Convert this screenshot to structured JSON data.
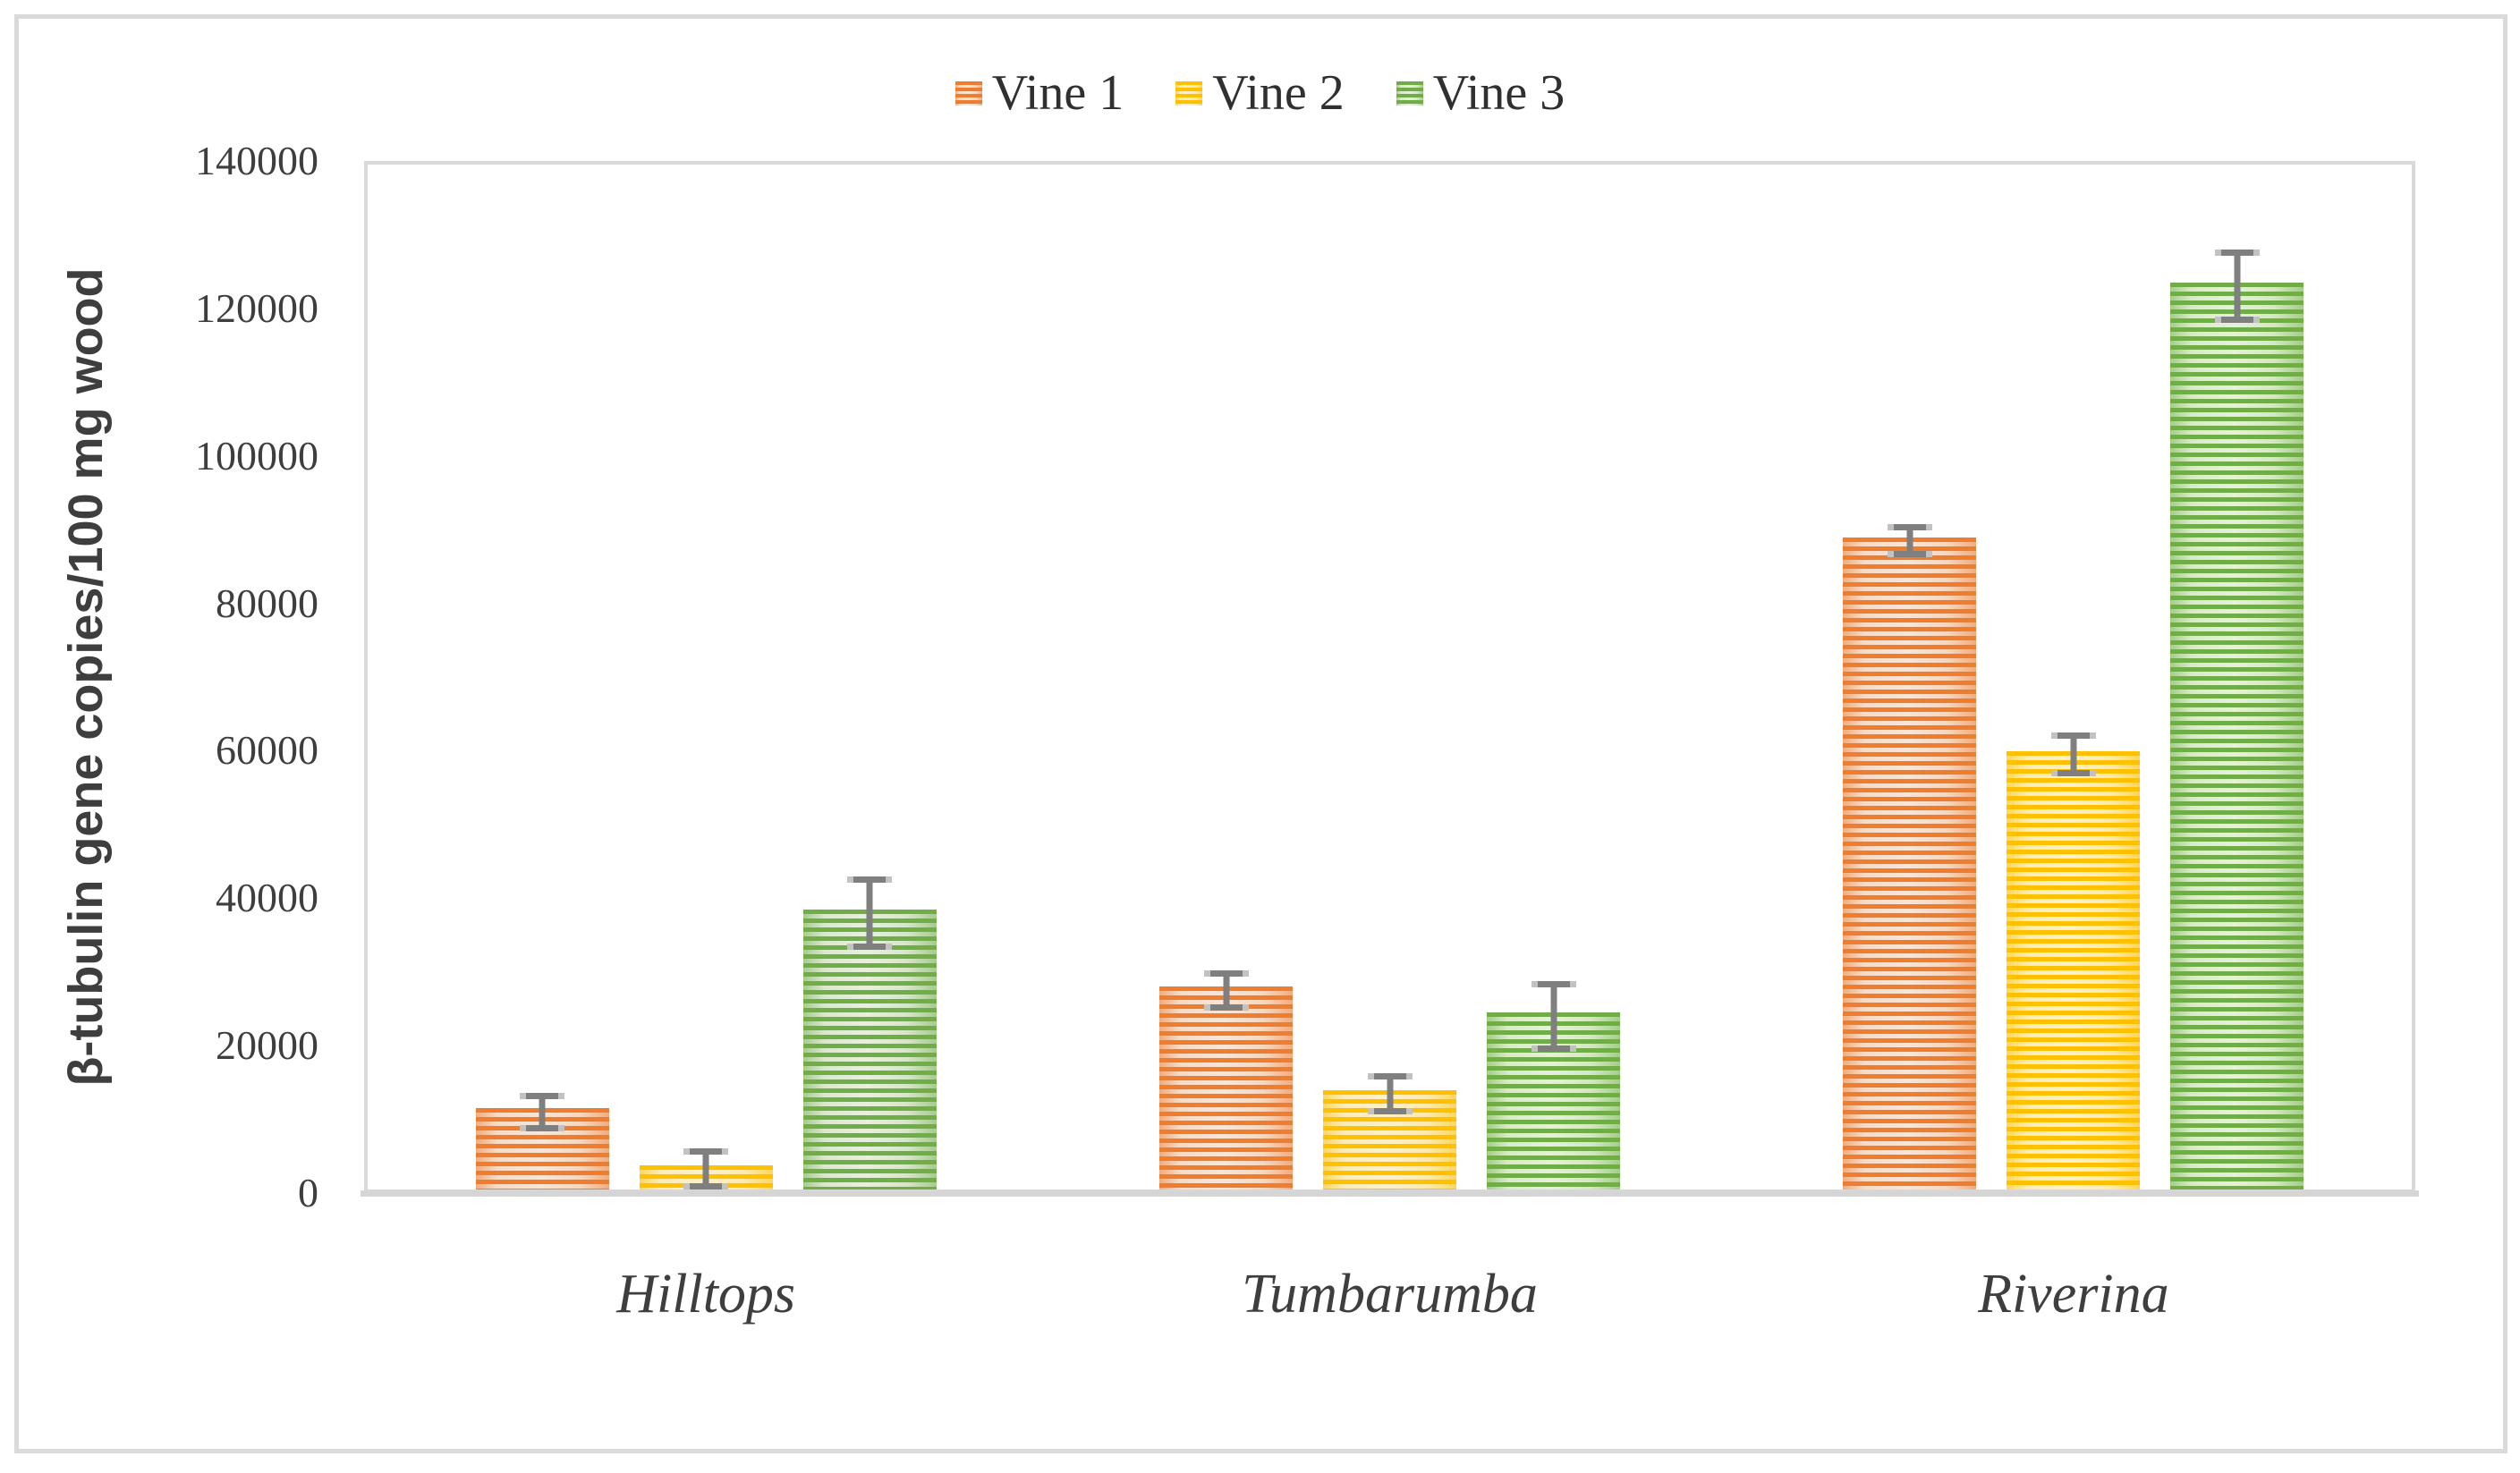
{
  "figure": {
    "background": "#FFFFFF",
    "frame_border_color": "#DADADA"
  },
  "chart_data": {
    "type": "bar",
    "title": "",
    "categories": [
      "Hilltops",
      "Tumbarumba",
      "Riverina"
    ],
    "series": [
      {
        "name": "Vine 1",
        "color": "#ED7D31",
        "light_color": "#FBE5D4",
        "values": [
          11000,
          27500,
          88500
        ],
        "errors": [
          2600,
          2700,
          2300
        ]
      },
      {
        "name": "Vine 2",
        "color": "#FFC000",
        "light_color": "#FFF1C9",
        "values": [
          3300,
          13500,
          59500
        ],
        "errors": [
          2800,
          2800,
          3000
        ]
      },
      {
        "name": "Vine 3",
        "color": "#70AD47",
        "light_color": "#E6F0DC",
        "values": [
          38000,
          24000,
          123000
        ],
        "errors": [
          5000,
          4800,
          5000
        ]
      }
    ],
    "ylabel": "β-tubulin gene copies/100 mg wood",
    "xlabel": "",
    "ylim": [
      0,
      140000
    ],
    "yticks": [
      0,
      20000,
      40000,
      60000,
      80000,
      100000,
      120000,
      140000
    ],
    "grid": false,
    "legend_position": "top-center",
    "bar_pattern": "horizontal-stripes",
    "error_bars": true,
    "error_bar_color": "#7F7F7F",
    "axis_color": "#D9D9D9",
    "text_color": "#3E3E3E",
    "category_label_style": "italic-serif"
  }
}
